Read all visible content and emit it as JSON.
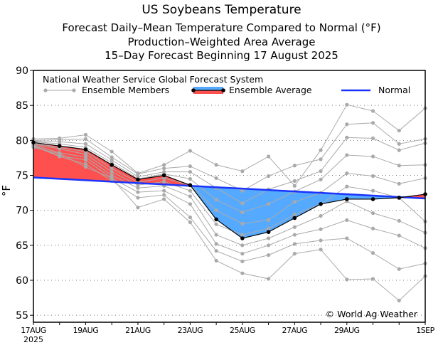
{
  "chart_data": {
    "type": "line",
    "title": "US Soybeans Temperature",
    "subtitles": [
      "Forecast Daily–Mean Temperature Compared to Normal (°F)",
      "Production–Weighted Area Average",
      "15–Day Forecast Beginning 17 August 2025"
    ],
    "ylabel": "°F",
    "xlabel": "",
    "ylim": [
      54,
      90
    ],
    "yticks": [
      55,
      60,
      65,
      70,
      75,
      80,
      85,
      90
    ],
    "x_days": 16,
    "xtick_labels": [
      {
        "day": 0,
        "label": "17AUG",
        "sub": "2025"
      },
      {
        "day": 2,
        "label": "19AUG"
      },
      {
        "day": 4,
        "label": "21AUG"
      },
      {
        "day": 6,
        "label": "23AUG"
      },
      {
        "day": 8,
        "label": "25AUG"
      },
      {
        "day": 10,
        "label": "27AUG"
      },
      {
        "day": 12,
        "label": "29AUG"
      },
      {
        "day": 15,
        "label": "1SEP"
      }
    ],
    "grid": "horizontal dotted",
    "legend": {
      "header": "National Weather Service Global Forecast System",
      "entries": [
        "Ensemble Members",
        "Ensemble Average",
        "Normal"
      ],
      "placement": "top"
    },
    "ensemble_average": [
      79.7,
      79.2,
      78.7,
      76.5,
      74.4,
      75.0,
      73.6,
      68.7,
      66.0,
      66.9,
      68.9,
      70.9,
      71.6,
      71.6,
      71.8,
      72.3
    ],
    "normal": [
      74.7,
      74.5,
      74.3,
      74.1,
      73.9,
      73.7,
      73.5,
      73.3,
      73.1,
      72.9,
      72.7,
      72.5,
      72.3,
      72.1,
      71.9,
      71.7
    ],
    "ensemble_members": [
      [
        80.2,
        80.3,
        80.8,
        78.4,
        75.3,
        76.5,
        78.5,
        76.5,
        75.6,
        77.7,
        73.5,
        78.6,
        85.1,
        84.2,
        81.4,
        84.6
      ],
      [
        80.0,
        80.1,
        80.2,
        77.6,
        75.2,
        76.0,
        76.3,
        74.6,
        72.8,
        74.9,
        76.4,
        77.3,
        82.3,
        82.5,
        79.5,
        80.2
      ],
      [
        79.9,
        79.8,
        79.5,
        77.2,
        74.8,
        75.5,
        75.5,
        73.2,
        71.0,
        73.0,
        74.2,
        75.6,
        80.4,
        80.3,
        78.6,
        79.6
      ],
      [
        79.8,
        79.5,
        79.0,
        76.8,
        74.5,
        75.2,
        74.5,
        71.5,
        69.7,
        70.9,
        72.7,
        74.4,
        77.9,
        77.7,
        76.4,
        76.5
      ],
      [
        79.6,
        79.0,
        78.4,
        76.0,
        74.0,
        74.6,
        73.6,
        70.0,
        68.1,
        68.6,
        71.2,
        72.5,
        75.3,
        74.9,
        73.8,
        74.6
      ],
      [
        79.5,
        78.8,
        78.0,
        75.5,
        73.6,
        74.1,
        72.8,
        68.0,
        66.5,
        67.4,
        69.4,
        70.9,
        73.4,
        72.8,
        71.8,
        68.4
      ],
      [
        79.4,
        78.2,
        77.6,
        75.0,
        73.2,
        73.5,
        72.0,
        66.5,
        65.0,
        66.0,
        67.6,
        69.2,
        71.3,
        69.6,
        68.5,
        66.8
      ],
      [
        79.3,
        77.8,
        77.2,
        74.6,
        72.6,
        72.8,
        70.9,
        65.2,
        63.8,
        65.0,
        66.5,
        67.3,
        68.6,
        67.4,
        66.4,
        64.6
      ],
      [
        79.2,
        77.7,
        76.6,
        74.2,
        71.8,
        72.2,
        69.0,
        64.2,
        62.7,
        63.6,
        65.2,
        65.7,
        66.0,
        63.9,
        61.6,
        62.4
      ],
      [
        79.0,
        78.1,
        76.2,
        74.6,
        70.4,
        71.6,
        68.3,
        62.8,
        61.0,
        60.2,
        63.8,
        64.4,
        60.1,
        60.2,
        57.1,
        60.6
      ]
    ],
    "colors": {
      "above": "#ff5050",
      "below": "#55aaff",
      "normal": "#1a33ff",
      "average": "#000000",
      "members": "#aaaaaa"
    },
    "annotation": "© World Ag Weather"
  }
}
